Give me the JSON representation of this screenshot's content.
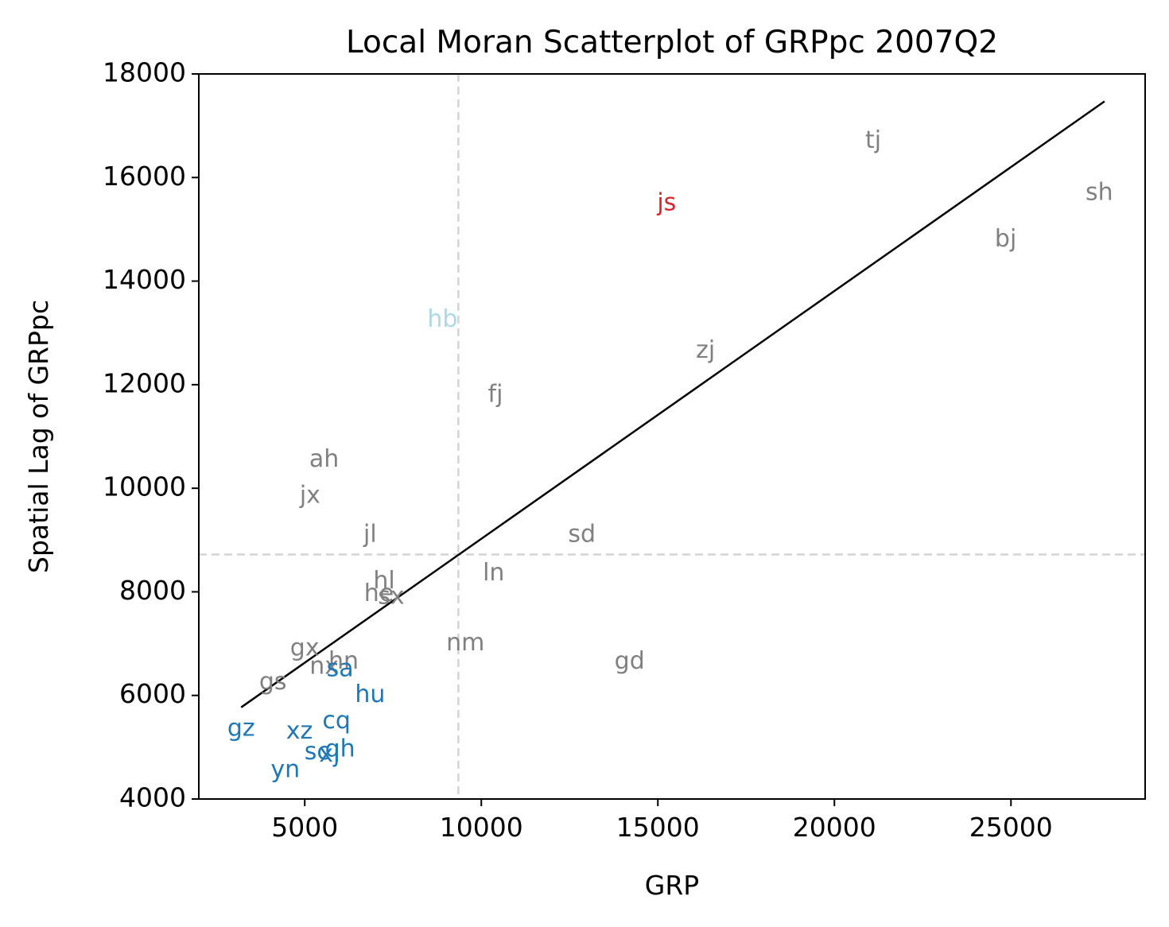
{
  "chart_data": {
    "type": "scatter",
    "title": "Local Moran Scatterplot of GRPpc 2007Q2",
    "xlabel": "GRP",
    "ylabel": "Spatial Lag of GRPpc",
    "xlim": [
      2000,
      28800
    ],
    "ylim": [
      4000,
      18000
    ],
    "xticks": [
      5000,
      10000,
      15000,
      20000,
      25000
    ],
    "yticks": [
      4000,
      6000,
      8000,
      10000,
      12000,
      14000,
      16000,
      18000
    ],
    "grid": false,
    "mean_lines": {
      "x": 9350,
      "y": 8720,
      "color": "#d3d3d3",
      "style": "dashed"
    },
    "fit_line": {
      "x": [
        3200,
        27650
      ],
      "y": [
        5770,
        17470
      ],
      "color": "#000000"
    },
    "colors": {
      "ns": "#808080",
      "HH": "#d62728",
      "LL": "#1f77b4",
      "LH": "#add8e6"
    },
    "points": [
      {
        "label": "tj",
        "x": 21100,
        "y": 16700,
        "group": "ns"
      },
      {
        "label": "js",
        "x": 15250,
        "y": 15500,
        "group": "HH"
      },
      {
        "label": "sh",
        "x": 27500,
        "y": 15700,
        "group": "ns"
      },
      {
        "label": "bj",
        "x": 24850,
        "y": 14800,
        "group": "ns"
      },
      {
        "label": "hb",
        "x": 8900,
        "y": 13250,
        "group": "LH"
      },
      {
        "label": "zj",
        "x": 16350,
        "y": 12650,
        "group": "ns"
      },
      {
        "label": "fj",
        "x": 10400,
        "y": 11800,
        "group": "ns"
      },
      {
        "label": "ah",
        "x": 5550,
        "y": 10550,
        "group": "ns"
      },
      {
        "label": "jx",
        "x": 5150,
        "y": 9850,
        "group": "ns"
      },
      {
        "label": "jl",
        "x": 6850,
        "y": 9100,
        "group": "ns"
      },
      {
        "label": "sd",
        "x": 12850,
        "y": 9100,
        "group": "ns"
      },
      {
        "label": "ln",
        "x": 10350,
        "y": 8350,
        "group": "ns"
      },
      {
        "label": "hl",
        "x": 7250,
        "y": 8200,
        "group": "ns"
      },
      {
        "label": "he",
        "x": 7100,
        "y": 7950,
        "group": "ns"
      },
      {
        "label": "sx",
        "x": 7450,
        "y": 7900,
        "group": "ns"
      },
      {
        "label": "nm",
        "x": 9550,
        "y": 7000,
        "group": "ns"
      },
      {
        "label": "gx",
        "x": 5000,
        "y": 6900,
        "group": "ns"
      },
      {
        "label": "gd",
        "x": 14200,
        "y": 6650,
        "group": "ns"
      },
      {
        "label": "hn",
        "x": 6100,
        "y": 6650,
        "group": "ns"
      },
      {
        "label": "nx",
        "x": 5550,
        "y": 6550,
        "group": "ns"
      },
      {
        "label": "sa",
        "x": 6000,
        "y": 6500,
        "group": "LL"
      },
      {
        "label": "gs",
        "x": 4100,
        "y": 6250,
        "group": "ns"
      },
      {
        "label": "hu",
        "x": 6850,
        "y": 6000,
        "group": "LL"
      },
      {
        "label": "cq",
        "x": 5900,
        "y": 5500,
        "group": "LL"
      },
      {
        "label": "gz",
        "x": 3200,
        "y": 5350,
        "group": "LL"
      },
      {
        "label": "xz",
        "x": 4850,
        "y": 5300,
        "group": "LL"
      },
      {
        "label": "qh",
        "x": 6000,
        "y": 4950,
        "group": "LL"
      },
      {
        "label": "sc",
        "x": 5350,
        "y": 4900,
        "group": "LL"
      },
      {
        "label": "xj",
        "x": 5700,
        "y": 4850,
        "group": "LL"
      },
      {
        "label": "yn",
        "x": 4450,
        "y": 4550,
        "group": "LL"
      }
    ]
  }
}
